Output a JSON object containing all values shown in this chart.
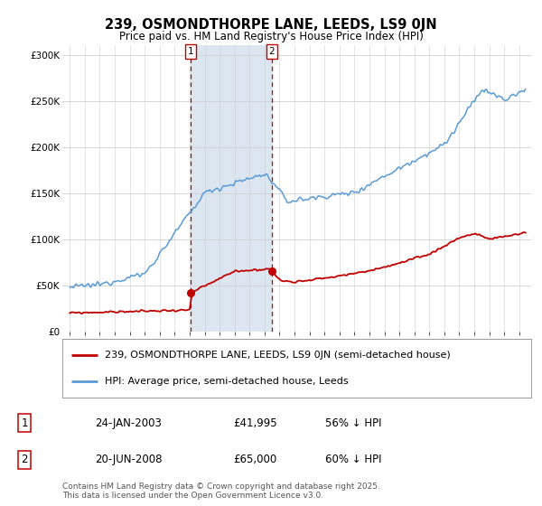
{
  "title": "239, OSMONDTHORPE LANE, LEEDS, LS9 0JN",
  "subtitle": "Price paid vs. HM Land Registry's House Price Index (HPI)",
  "legend_line1": "239, OSMONDTHORPE LANE, LEEDS, LS9 0JN (semi-detached house)",
  "legend_line2": "HPI: Average price, semi-detached house, Leeds",
  "footer": "Contains HM Land Registry data © Crown copyright and database right 2025.\nThis data is licensed under the Open Government Licence v3.0.",
  "point1_label": "1",
  "point1_date": "24-JAN-2003",
  "point1_price": "£41,995",
  "point1_hpi": "56% ↓ HPI",
  "point1_year": 2003.07,
  "point1_value": 41995,
  "point2_label": "2",
  "point2_date": "20-JUN-2008",
  "point2_price": "£65,000",
  "point2_hpi": "60% ↓ HPI",
  "point2_year": 2008.47,
  "point2_value": 65000,
  "hpi_color": "#5b9bd5",
  "price_color": "#c00000",
  "marker_color": "#c00000",
  "bg_color": "#ffffff",
  "plot_bg_color": "#ffffff",
  "grid_color": "#d0d0d0",
  "highlight_color": "#dce6f1",
  "ylim": [
    0,
    310000
  ],
  "yticks": [
    0,
    50000,
    100000,
    150000,
    200000,
    250000,
    300000
  ],
  "ytick_labels": [
    "£0",
    "£50K",
    "£100K",
    "£150K",
    "£200K",
    "£250K",
    "£300K"
  ],
  "xmin": 1994.5,
  "xmax": 2025.8,
  "title_fontsize": 10.5,
  "subtitle_fontsize": 8.5,
  "axis_fontsize": 7.5,
  "legend_fontsize": 8,
  "footer_fontsize": 6.5
}
